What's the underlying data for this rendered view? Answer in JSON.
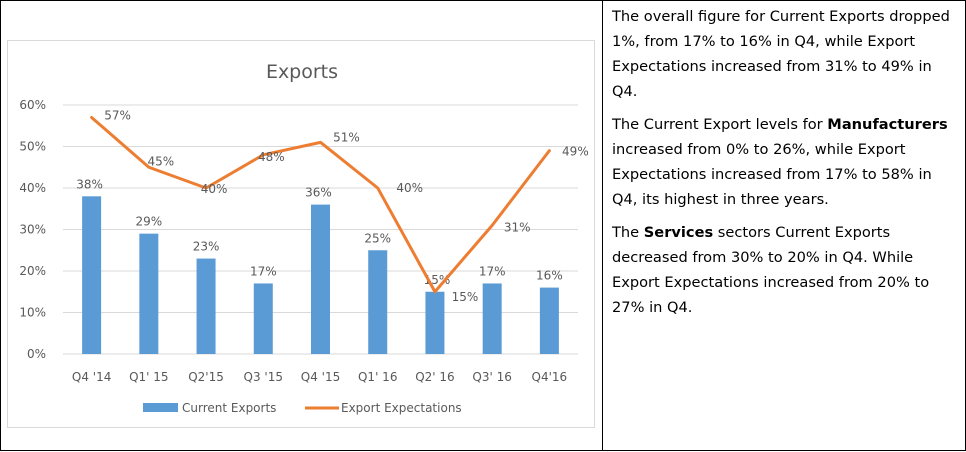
{
  "chart_data": {
    "type": "bar",
    "title": "Exports",
    "categories": [
      "Q4 '14",
      "Q1' 15",
      "Q2'15",
      "Q3 '15",
      "Q4 '15",
      "Q1' 16",
      "Q2' 16",
      "Q3' 16",
      "Q4'16"
    ],
    "y_ticks": [
      "0%",
      "10%",
      "20%",
      "30%",
      "40%",
      "50%",
      "60%"
    ],
    "ylim": [
      0,
      60
    ],
    "grid": true,
    "legend_position": "bottom",
    "series": [
      {
        "name": "Current Exports",
        "type": "bar",
        "color": "#5b9bd5",
        "values": [
          38,
          29,
          23,
          17,
          36,
          25,
          15,
          17,
          16
        ],
        "labels": [
          "38%",
          "29%",
          "23%",
          "17%",
          "36%",
          "25%",
          "15%",
          "17%",
          "16%"
        ]
      },
      {
        "name": "Export Expectations",
        "type": "line",
        "color": "#ed7d31",
        "values": [
          57,
          45,
          40,
          48,
          51,
          40,
          15,
          31,
          49
        ],
        "labels": [
          "57%",
          "45%",
          "40%",
          "48%",
          "51%",
          "40%",
          "15%",
          "31%",
          "49%"
        ]
      }
    ]
  },
  "commentary": {
    "p1": "The overall figure for Current Exports dropped 1%, from 17% to 16% in Q4, while Export Expectations increased from 31% to 49% in Q4.",
    "p2_before": "The Current Export levels for ",
    "p2_bold": "Manufacturers",
    "p2_after": " increased from 0% to 26%, while Export Expectations increased from 17% to 58% in Q4, its highest in three years.",
    "p3_before": "The ",
    "p3_bold": "Services",
    "p3_after": " sectors Current Exports decreased from 30% to 20% in Q4. While Export Expectations increased from 20% to 27% in Q4."
  }
}
